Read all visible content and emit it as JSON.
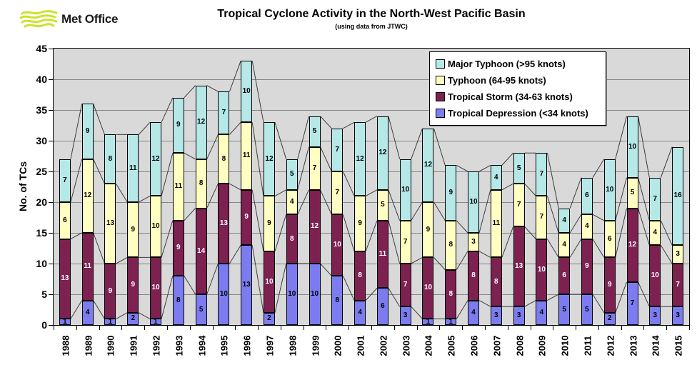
{
  "logo": {
    "text": "Met Office"
  },
  "title": "Tropical Cyclone Activity in the North-West Pacific Basin",
  "subtitle": "(using data from JTWC)",
  "chart_data": {
    "type": "bar",
    "stacked": true,
    "title": "Tropical Cyclone Activity in the North-West Pacific Basin",
    "subtitle": "(using data from JTWC)",
    "xlabel": "",
    "ylabel": "No. of TCs",
    "ylim": [
      0,
      45
    ],
    "ytick_step": 5,
    "yticks": [
      0,
      5,
      10,
      15,
      20,
      25,
      30,
      35,
      40,
      45
    ],
    "grid": true,
    "plot_bg": "#D9D9D9",
    "gridline_color": "#858585",
    "connector_color": "#3d3d3d",
    "legend_position": "top-right",
    "categories": [
      "1988",
      "1989",
      "1990",
      "1991",
      "1992",
      "1993",
      "1994",
      "1995",
      "1996",
      "1997",
      "1998",
      "1999",
      "2000",
      "2001",
      "2002",
      "2003",
      "2004",
      "2005",
      "2006",
      "2007",
      "2008",
      "2009",
      "2010",
      "2011",
      "2012",
      "2013",
      "2014",
      "2015"
    ],
    "series": [
      {
        "name": "Tropical Depression (<34 knots)",
        "color": "#7C7CF0",
        "label_color": "#000000",
        "values": [
          1,
          4,
          1,
          2,
          1,
          8,
          5,
          10,
          13,
          2,
          10,
          10,
          8,
          4,
          6,
          3,
          1,
          1,
          4,
          3,
          3,
          4,
          5,
          5,
          2,
          7,
          3,
          3
        ]
      },
      {
        "name": "Tropical Storm (34-63 knots)",
        "color": "#7C2150",
        "label_color": "#FFFFFF",
        "values": [
          13,
          11,
          9,
          9,
          10,
          9,
          14,
          13,
          9,
          10,
          8,
          12,
          10,
          8,
          11,
          7,
          10,
          8,
          8,
          8,
          13,
          10,
          6,
          9,
          9,
          12,
          10,
          7
        ]
      },
      {
        "name": "Typhoon (64-95 knots)",
        "color": "#FFFFC2",
        "label_color": "#000000",
        "values": [
          6,
          12,
          13,
          9,
          10,
          11,
          8,
          8,
          11,
          9,
          4,
          7,
          7,
          9,
          5,
          7,
          9,
          8,
          3,
          11,
          7,
          7,
          4,
          4,
          6,
          5,
          4,
          3
        ]
      },
      {
        "name": "Major Typhoon (>95 knots)",
        "color": "#B5E8E6",
        "label_color": "#000000",
        "values": [
          7,
          9,
          8,
          11,
          12,
          9,
          12,
          7,
          10,
          12,
          5,
          5,
          7,
          12,
          12,
          10,
          12,
          9,
          10,
          4,
          5,
          7,
          4,
          6,
          10,
          10,
          7,
          16
        ]
      }
    ],
    "totals": [
      27,
      36,
      31,
      31,
      33,
      37,
      39,
      38,
      43,
      33,
      27,
      34,
      32,
      33,
      34,
      27,
      32,
      26,
      25,
      26,
      28,
      28,
      19,
      24,
      27,
      34,
      24,
      29
    ]
  }
}
